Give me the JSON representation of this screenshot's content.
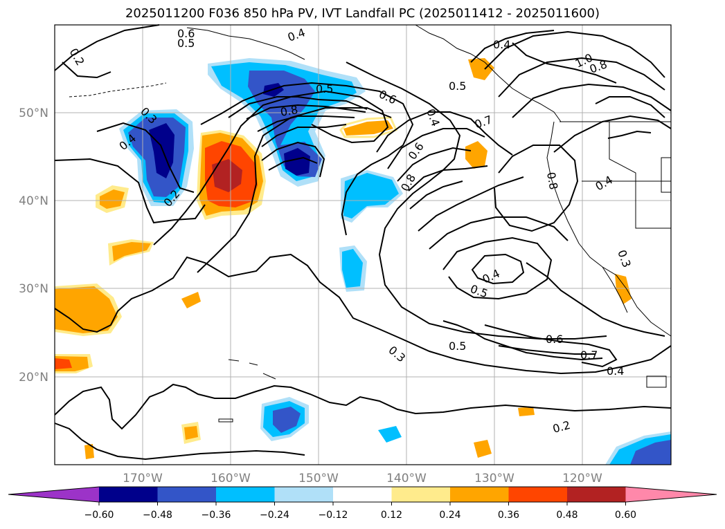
{
  "title": "2025011200 F036 850 hPa PV, IVT Landfall PC (2025011412 - 2025011600)",
  "lon_labels": [
    "170°W",
    "160°W",
    "150°W",
    "140°W",
    "130°W",
    "120°W"
  ],
  "lat_labels": [
    "50°N",
    "40°N",
    "30°N",
    "20°N"
  ],
  "contour_labels": [
    "0.2",
    "0.6",
    "0.5",
    "0.4",
    "0.3",
    "0.4",
    "0.2",
    "0.8",
    "0.5",
    "0.6",
    "0.4",
    "0.8",
    "0.6",
    "0.7",
    "0.4",
    "0.5",
    "0.8",
    "1.0",
    "0.8",
    "0.4",
    "0.3",
    "0.4",
    "0.5",
    "0.5",
    "0.6",
    "0.7",
    "0.4",
    "0.3",
    "0.2"
  ],
  "colorbar": {
    "colors": [
      "#9c33c8",
      "#00008b",
      "#3355c8",
      "#00bfff",
      "#b0e0f8",
      "#ffffff",
      "#ffeb8c",
      "#ffa500",
      "#ff4500",
      "#b22222",
      "#ff88aa"
    ],
    "tick_labels": [
      "−0.60",
      "−0.48",
      "−0.36",
      "−0.24",
      "−0.12",
      "0.12",
      "0.24",
      "0.36",
      "0.48",
      "0.60"
    ]
  }
}
